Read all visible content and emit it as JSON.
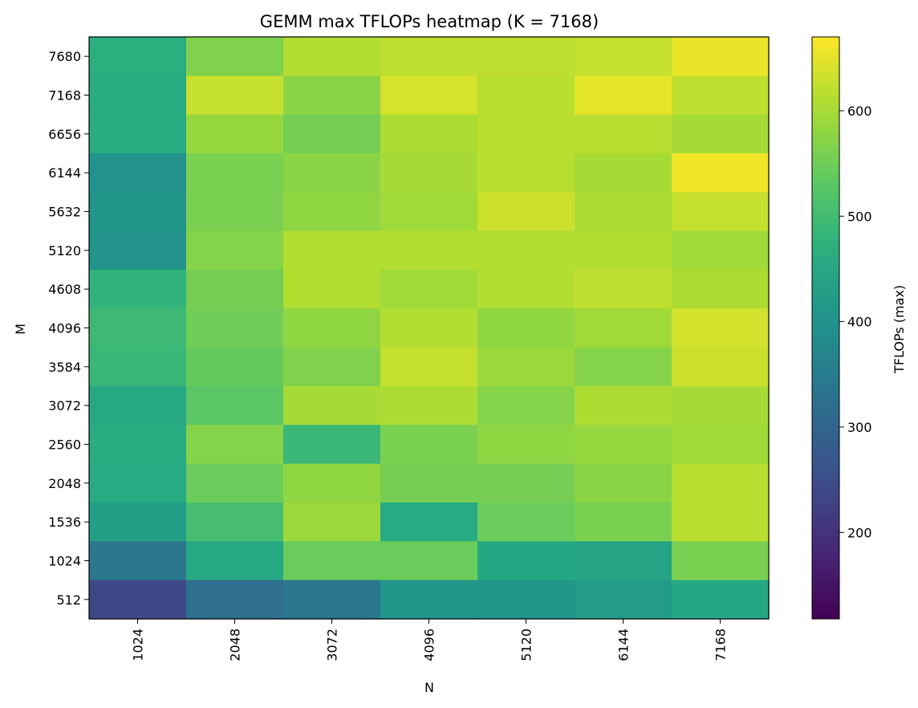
{
  "chart_data": {
    "type": "heatmap",
    "title": "GEMM max TFLOPs heatmap (K = 7168)",
    "xlabel": "N",
    "ylabel": "M",
    "colorbar_label": "TFLOPs (max)",
    "colormap": "viridis",
    "vmin": 118,
    "vmax": 670,
    "colorbar_ticks": [
      200,
      300,
      400,
      500,
      600
    ],
    "x": [
      1024,
      2048,
      3072,
      4096,
      5120,
      6144,
      7168
    ],
    "y": [
      7680,
      7168,
      6656,
      6144,
      5632,
      5120,
      4608,
      4096,
      3584,
      3072,
      2560,
      2048,
      1536,
      1024,
      512
    ],
    "values": [
      [
        470,
        565,
        610,
        620,
        620,
        625,
        655
      ],
      [
        465,
        625,
        575,
        640,
        615,
        650,
        620
      ],
      [
        465,
        585,
        555,
        605,
        615,
        615,
        600
      ],
      [
        400,
        560,
        575,
        600,
        615,
        600,
        660
      ],
      [
        410,
        560,
        580,
        595,
        630,
        605,
        625
      ],
      [
        405,
        570,
        610,
        610,
        610,
        610,
        595
      ],
      [
        480,
        555,
        610,
        595,
        610,
        620,
        605
      ],
      [
        495,
        550,
        580,
        610,
        580,
        595,
        635
      ],
      [
        490,
        540,
        565,
        625,
        590,
        570,
        630
      ],
      [
        455,
        530,
        600,
        605,
        570,
        605,
        600
      ],
      [
        465,
        570,
        490,
        560,
        580,
        585,
        595
      ],
      [
        460,
        545,
        580,
        555,
        555,
        575,
        615
      ],
      [
        430,
        505,
        590,
        460,
        545,
        560,
        615
      ],
      [
        340,
        455,
        545,
        545,
        450,
        440,
        560
      ],
      [
        240,
        320,
        340,
        410,
        410,
        420,
        450
      ]
    ]
  }
}
